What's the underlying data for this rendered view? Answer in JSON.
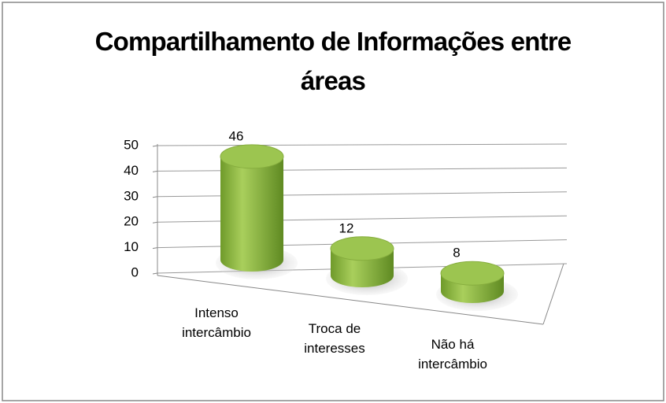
{
  "chart_data": {
    "type": "bar3d",
    "title": "Compartilhamento de Informações entre áreas",
    "categories": [
      "Intenso intercâmbio",
      "Troca de interesses",
      "Não há intercâmbio"
    ],
    "values": [
      46,
      12,
      8
    ],
    "color": "#8db33a",
    "ylim": [
      0,
      50
    ],
    "yticks": [
      0,
      10,
      20,
      30,
      40,
      50
    ],
    "grid": true
  }
}
